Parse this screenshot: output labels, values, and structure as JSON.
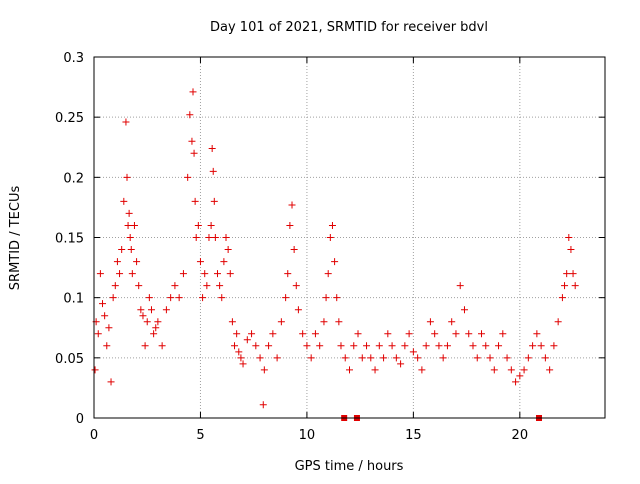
{
  "chart_data": {
    "type": "scatter",
    "title": "Day 101 of 2021, SRMTID for receiver bdvl",
    "xlabel": "GPS time / hours",
    "ylabel": "SRMTID / TECUs",
    "xlim": [
      0,
      24
    ],
    "ylim": [
      0,
      0.3
    ],
    "xticks": [
      0,
      5,
      10,
      15,
      20
    ],
    "xtick_labels": [
      "0",
      "5",
      "10",
      "15",
      "20"
    ],
    "yticks": [
      0,
      0.05,
      0.1,
      0.15,
      0.2,
      0.25,
      0.3
    ],
    "ytick_labels": [
      "0",
      "0.05",
      "0.1",
      "0.15",
      "0.2",
      "0.25",
      "0.3"
    ],
    "grid": true,
    "marker": "+",
    "color": "#e00000",
    "baseline_markers": {
      "style": "square",
      "x": [
        11.75,
        12.35,
        20.9
      ],
      "y": 0
    },
    "series": [
      {
        "name": "SRMTID",
        "x": [
          0.05,
          0.1,
          0.2,
          0.3,
          0.4,
          0.5,
          0.6,
          0.7,
          0.8,
          0.9,
          1.0,
          1.1,
          1.2,
          1.3,
          1.4,
          1.5,
          1.55,
          1.6,
          1.65,
          1.7,
          1.75,
          1.8,
          1.9,
          2.0,
          2.1,
          2.2,
          2.3,
          2.4,
          2.5,
          2.6,
          2.7,
          2.8,
          2.9,
          3.0,
          3.2,
          3.4,
          3.6,
          3.8,
          4.0,
          4.2,
          4.4,
          4.5,
          4.6,
          4.65,
          4.7,
          4.75,
          4.8,
          4.9,
          5.0,
          5.1,
          5.2,
          5.3,
          5.4,
          5.5,
          5.55,
          5.6,
          5.65,
          5.7,
          5.8,
          5.9,
          6.0,
          6.1,
          6.2,
          6.3,
          6.4,
          6.5,
          6.6,
          6.7,
          6.8,
          6.9,
          7.0,
          7.2,
          7.4,
          7.6,
          7.8,
          7.95,
          8.0,
          8.2,
          8.4,
          8.6,
          8.8,
          9.0,
          9.1,
          9.2,
          9.3,
          9.4,
          9.5,
          9.6,
          9.8,
          10.0,
          10.2,
          10.4,
          10.6,
          10.8,
          10.9,
          11.0,
          11.1,
          11.2,
          11.3,
          11.4,
          11.5,
          11.6,
          11.8,
          12.0,
          12.2,
          12.4,
          12.6,
          12.8,
          13.0,
          13.2,
          13.4,
          13.6,
          13.8,
          14.0,
          14.2,
          14.4,
          14.6,
          14.8,
          15.0,
          15.2,
          15.4,
          15.6,
          15.8,
          16.0,
          16.2,
          16.4,
          16.6,
          16.8,
          17.0,
          17.2,
          17.4,
          17.6,
          17.8,
          18.0,
          18.2,
          18.4,
          18.6,
          18.8,
          19.0,
          19.2,
          19.4,
          19.6,
          19.8,
          20.0,
          20.2,
          20.4,
          20.6,
          20.8,
          21.0,
          21.2,
          21.4,
          21.6,
          21.8,
          22.0,
          22.1,
          22.2,
          22.3,
          22.4,
          22.5,
          22.6
        ],
        "y": [
          0.04,
          0.08,
          0.07,
          0.12,
          0.095,
          0.085,
          0.06,
          0.075,
          0.03,
          0.1,
          0.11,
          0.13,
          0.12,
          0.14,
          0.18,
          0.246,
          0.2,
          0.16,
          0.17,
          0.15,
          0.14,
          0.12,
          0.16,
          0.13,
          0.11,
          0.09,
          0.085,
          0.06,
          0.08,
          0.1,
          0.09,
          0.07,
          0.075,
          0.08,
          0.06,
          0.09,
          0.1,
          0.11,
          0.1,
          0.12,
          0.2,
          0.252,
          0.23,
          0.271,
          0.22,
          0.18,
          0.15,
          0.16,
          0.13,
          0.1,
          0.12,
          0.11,
          0.15,
          0.16,
          0.224,
          0.205,
          0.18,
          0.15,
          0.12,
          0.11,
          0.1,
          0.13,
          0.15,
          0.14,
          0.12,
          0.08,
          0.06,
          0.07,
          0.055,
          0.05,
          0.045,
          0.065,
          0.07,
          0.06,
          0.05,
          0.011,
          0.04,
          0.06,
          0.07,
          0.05,
          0.08,
          0.1,
          0.12,
          0.16,
          0.177,
          0.14,
          0.11,
          0.09,
          0.07,
          0.06,
          0.05,
          0.07,
          0.06,
          0.08,
          0.1,
          0.12,
          0.15,
          0.16,
          0.13,
          0.1,
          0.08,
          0.06,
          0.05,
          0.04,
          0.06,
          0.07,
          0.05,
          0.06,
          0.05,
          0.04,
          0.06,
          0.05,
          0.07,
          0.06,
          0.05,
          0.045,
          0.06,
          0.07,
          0.055,
          0.05,
          0.04,
          0.06,
          0.08,
          0.07,
          0.06,
          0.05,
          0.06,
          0.08,
          0.07,
          0.11,
          0.09,
          0.07,
          0.06,
          0.05,
          0.07,
          0.06,
          0.05,
          0.04,
          0.06,
          0.07,
          0.05,
          0.04,
          0.03,
          0.035,
          0.04,
          0.05,
          0.06,
          0.07,
          0.06,
          0.05,
          0.04,
          0.06,
          0.08,
          0.1,
          0.11,
          0.12,
          0.15,
          0.14,
          0.12,
          0.11
        ]
      }
    ]
  }
}
